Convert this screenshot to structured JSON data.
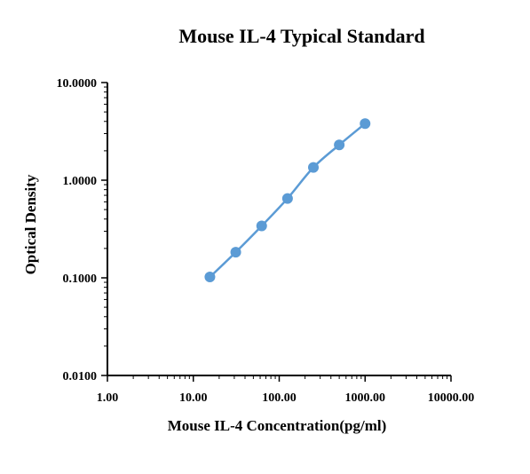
{
  "chart_data": {
    "type": "line",
    "title": "Mouse IL-4 Typical Standard",
    "xlabel": "Mouse IL-4  Concentration(pg/ml)",
    "ylabel": "Optical Density",
    "xscale": "log",
    "yscale": "log",
    "xlim": [
      1,
      10000
    ],
    "ylim": [
      0.01,
      10
    ],
    "x_tick_labels": [
      "1.00",
      "10.00",
      "100.00",
      "1000.00",
      "10000.00"
    ],
    "y_tick_labels": [
      "0.0100",
      "0.1000",
      "1.0000",
      "10.0000"
    ],
    "grid": false,
    "legend": "none",
    "series": [
      {
        "color": "#5b9bd5",
        "x": [
          15.6,
          31.2,
          62.5,
          125,
          250,
          500,
          1000
        ],
        "y": [
          0.102,
          0.183,
          0.34,
          0.65,
          1.35,
          2.3,
          3.8
        ]
      }
    ]
  }
}
